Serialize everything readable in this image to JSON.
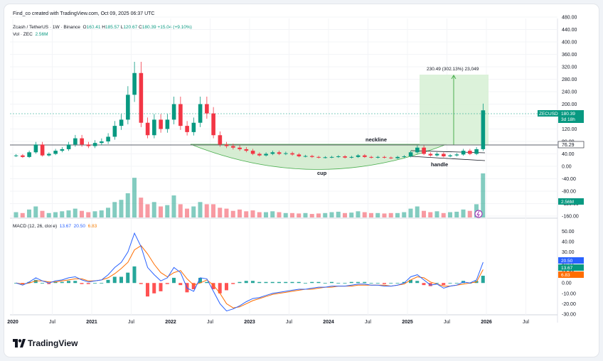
{
  "header": {
    "credit": "Find_co created with TradingView.com, Oct 09, 2025 06:37 UTC",
    "symbol": "Zcash / TetherUS · 1W · Binance",
    "ohlc": {
      "open_label": "O",
      "open": "160.41",
      "high_label": "H",
      "high": "185.57",
      "low_label": "L",
      "low": "120.67",
      "close_label": "C",
      "close": "180.39",
      "change": "+15.04 (+9.10%)"
    },
    "volume_label": "Vol · ZEC",
    "volume_value": "2.56M"
  },
  "macd_legend": {
    "title": "MACD (12, 26, close)",
    "v1": "13.67",
    "v2": "20.50",
    "v3": "6.83"
  },
  "colors": {
    "up": "#089981",
    "down": "#f23645",
    "macd_line": "#2962ff",
    "signal_line": "#ff6d00",
    "pattern_fill": "#cfeacb",
    "target_fill": "#d6f0d4"
  },
  "annotations": {
    "neckline": "neckline",
    "cup": "cup",
    "handle": "handle",
    "measure": "230.49 (302.13%) 23,049"
  },
  "price_badges": {
    "last": "180.39",
    "countdown": "3d 18h",
    "ticker": "ZECUSDT",
    "neckline_level": "76.29",
    "volume": "2.56M"
  },
  "macd_badges": [
    "20.50",
    "13.67",
    "6.83"
  ],
  "logo": {
    "icon": "tradingview-logo-icon",
    "text": "TradingView"
  },
  "chart_data": [
    {
      "type": "line",
      "title": "Zcash / TetherUS · 1W · Binance",
      "series": [
        {
          "name": "ZEC",
          "x": [
            "2019-11",
            "2019-12",
            "2020-01",
            "2020-02",
            "2020-03",
            "2020-04",
            "2020-05",
            "2020-06",
            "2020-07",
            "2020-08",
            "2020-09",
            "2020-10",
            "2020-11",
            "2020-12",
            "2021-01",
            "2021-02",
            "2021-03",
            "2021-04",
            "2021-05",
            "2021-06",
            "2021-07",
            "2021-08",
            "2021-09",
            "2021-10",
            "2021-11",
            "2021-12",
            "2022-01",
            "2022-02",
            "2022-03",
            "2022-04",
            "2022-05",
            "2022-06",
            "2022-07",
            "2022-08",
            "2022-09",
            "2022-10",
            "2022-11",
            "2022-12",
            "2023-01",
            "2023-02",
            "2023-03",
            "2023-04",
            "2023-05",
            "2023-06",
            "2023-07",
            "2023-08",
            "2023-09",
            "2023-10",
            "2023-11",
            "2023-12",
            "2024-01",
            "2024-02",
            "2024-03",
            "2024-04",
            "2024-05",
            "2024-06",
            "2024-07",
            "2024-08",
            "2024-09",
            "2024-10",
            "2024-11",
            "2024-12",
            "2025-01",
            "2025-02",
            "2025-03",
            "2025-04",
            "2025-05",
            "2025-06",
            "2025-07",
            "2025-08",
            "2025-09",
            "2025-10"
          ],
          "values": [
            35,
            30,
            45,
            70,
            35,
            40,
            50,
            55,
            70,
            90,
            70,
            65,
            75,
            80,
            95,
            130,
            150,
            230,
            300,
            140,
            100,
            150,
            120,
            150,
            200,
            130,
            110,
            140,
            200,
            170,
            100,
            70,
            65,
            60,
            55,
            50,
            40,
            35,
            40,
            45,
            40,
            42,
            38,
            32,
            33,
            30,
            28,
            29,
            30,
            32,
            28,
            30,
            35,
            30,
            28,
            30,
            28,
            26,
            30,
            32,
            45,
            60,
            40,
            35,
            40,
            32,
            35,
            38,
            50,
            40,
            55,
            180
          ]
        }
      ],
      "ylim": [
        -160,
        480
      ],
      "yticks": [
        "480.00",
        "440.00",
        "400.00",
        "360.00",
        "320.00",
        "280.00",
        "240.00",
        "200.00",
        "160.00",
        "120.00",
        "80.00",
        "40.00",
        "0.00",
        "-40.00",
        "-80.00",
        "-120.00",
        "-160.00"
      ]
    },
    {
      "type": "bar",
      "title": "Vol · ZEC",
      "note": "relative weekly volume (tallest bar = 1.0)",
      "values": [
        0.12,
        0.1,
        0.18,
        0.25,
        0.15,
        0.1,
        0.12,
        0.14,
        0.16,
        0.2,
        0.15,
        0.12,
        0.14,
        0.16,
        0.22,
        0.35,
        0.4,
        0.55,
        0.9,
        0.45,
        0.3,
        0.35,
        0.25,
        0.28,
        0.5,
        0.3,
        0.2,
        0.25,
        0.35,
        0.3,
        0.3,
        0.22,
        0.2,
        0.15,
        0.18,
        0.14,
        0.16,
        0.12,
        0.12,
        0.14,
        0.12,
        0.1,
        0.1,
        0.09,
        0.1,
        0.08,
        0.09,
        0.1,
        0.12,
        0.13,
        0.1,
        0.11,
        0.14,
        0.12,
        0.1,
        0.1,
        0.09,
        0.1,
        0.1,
        0.12,
        0.2,
        0.25,
        0.15,
        0.12,
        0.14,
        0.1,
        0.12,
        0.13,
        0.18,
        0.15,
        0.3,
        1.0
      ]
    },
    {
      "type": "line",
      "title": "MACD (12, 26, close)",
      "ylim": [
        -30,
        55
      ],
      "yticks": [
        "50.00",
        "40.00",
        "30.00",
        "20.00",
        "10.00",
        "0.00",
        "-10.00",
        "-20.00",
        "-30.00"
      ],
      "series": [
        {
          "name": "MACD",
          "values": [
            0,
            -2,
            1,
            5,
            2,
            0,
            2,
            3,
            5,
            6,
            3,
            1,
            2,
            3,
            8,
            15,
            20,
            30,
            48,
            35,
            15,
            8,
            2,
            5,
            15,
            10,
            -5,
            -8,
            5,
            4,
            -8,
            -20,
            -27,
            -25,
            -22,
            -18,
            -15,
            -14,
            -12,
            -10,
            -9,
            -8,
            -7,
            -6,
            -6,
            -5,
            -4,
            -4,
            -3,
            -3,
            -3,
            -2,
            -1,
            -1,
            -2,
            -2,
            -3,
            -3,
            -2,
            0,
            6,
            8,
            3,
            -2,
            -1,
            -5,
            -3,
            -2,
            1,
            0,
            3,
            20
          ]
        },
        {
          "name": "Signal",
          "values": [
            0,
            -1,
            0,
            2,
            2,
            1,
            1,
            2,
            3,
            4,
            4,
            2,
            2,
            3,
            5,
            9,
            14,
            20,
            32,
            36,
            28,
            18,
            10,
            6,
            10,
            12,
            4,
            -2,
            0,
            3,
            -2,
            -10,
            -20,
            -24,
            -23,
            -20,
            -17,
            -15,
            -13,
            -11,
            -10,
            -9,
            -8,
            -7,
            -6,
            -6,
            -5,
            -4,
            -4,
            -3,
            -3,
            -3,
            -2,
            -2,
            -2,
            -2,
            -2,
            -3,
            -2,
            -1,
            3,
            6,
            5,
            1,
            -1,
            -3,
            -3,
            -2,
            -1,
            0,
            1,
            13
          ]
        }
      ]
    }
  ],
  "x_axis": {
    "labels": [
      {
        "label": "2020",
        "month": 0,
        "bold": true
      },
      {
        "label": "Jul",
        "month": 6,
        "bold": false
      },
      {
        "label": "2021",
        "month": 12,
        "bold": true
      },
      {
        "label": "Jul",
        "month": 18,
        "bold": false
      },
      {
        "label": "2022",
        "month": 24,
        "bold": true
      },
      {
        "label": "Jul",
        "month": 30,
        "bold": false
      },
      {
        "label": "2023",
        "month": 36,
        "bold": true
      },
      {
        "label": "Jul",
        "month": 42,
        "bold": false
      },
      {
        "label": "2024",
        "month": 48,
        "bold": true
      },
      {
        "label": "Jul",
        "month": 54,
        "bold": false
      },
      {
        "label": "2025",
        "month": 60,
        "bold": true
      },
      {
        "label": "Jul",
        "month": 66,
        "bold": false
      },
      {
        "label": "2026",
        "month": 72,
        "bold": true
      },
      {
        "label": "Jul",
        "month": 78,
        "bold": false
      }
    ]
  }
}
